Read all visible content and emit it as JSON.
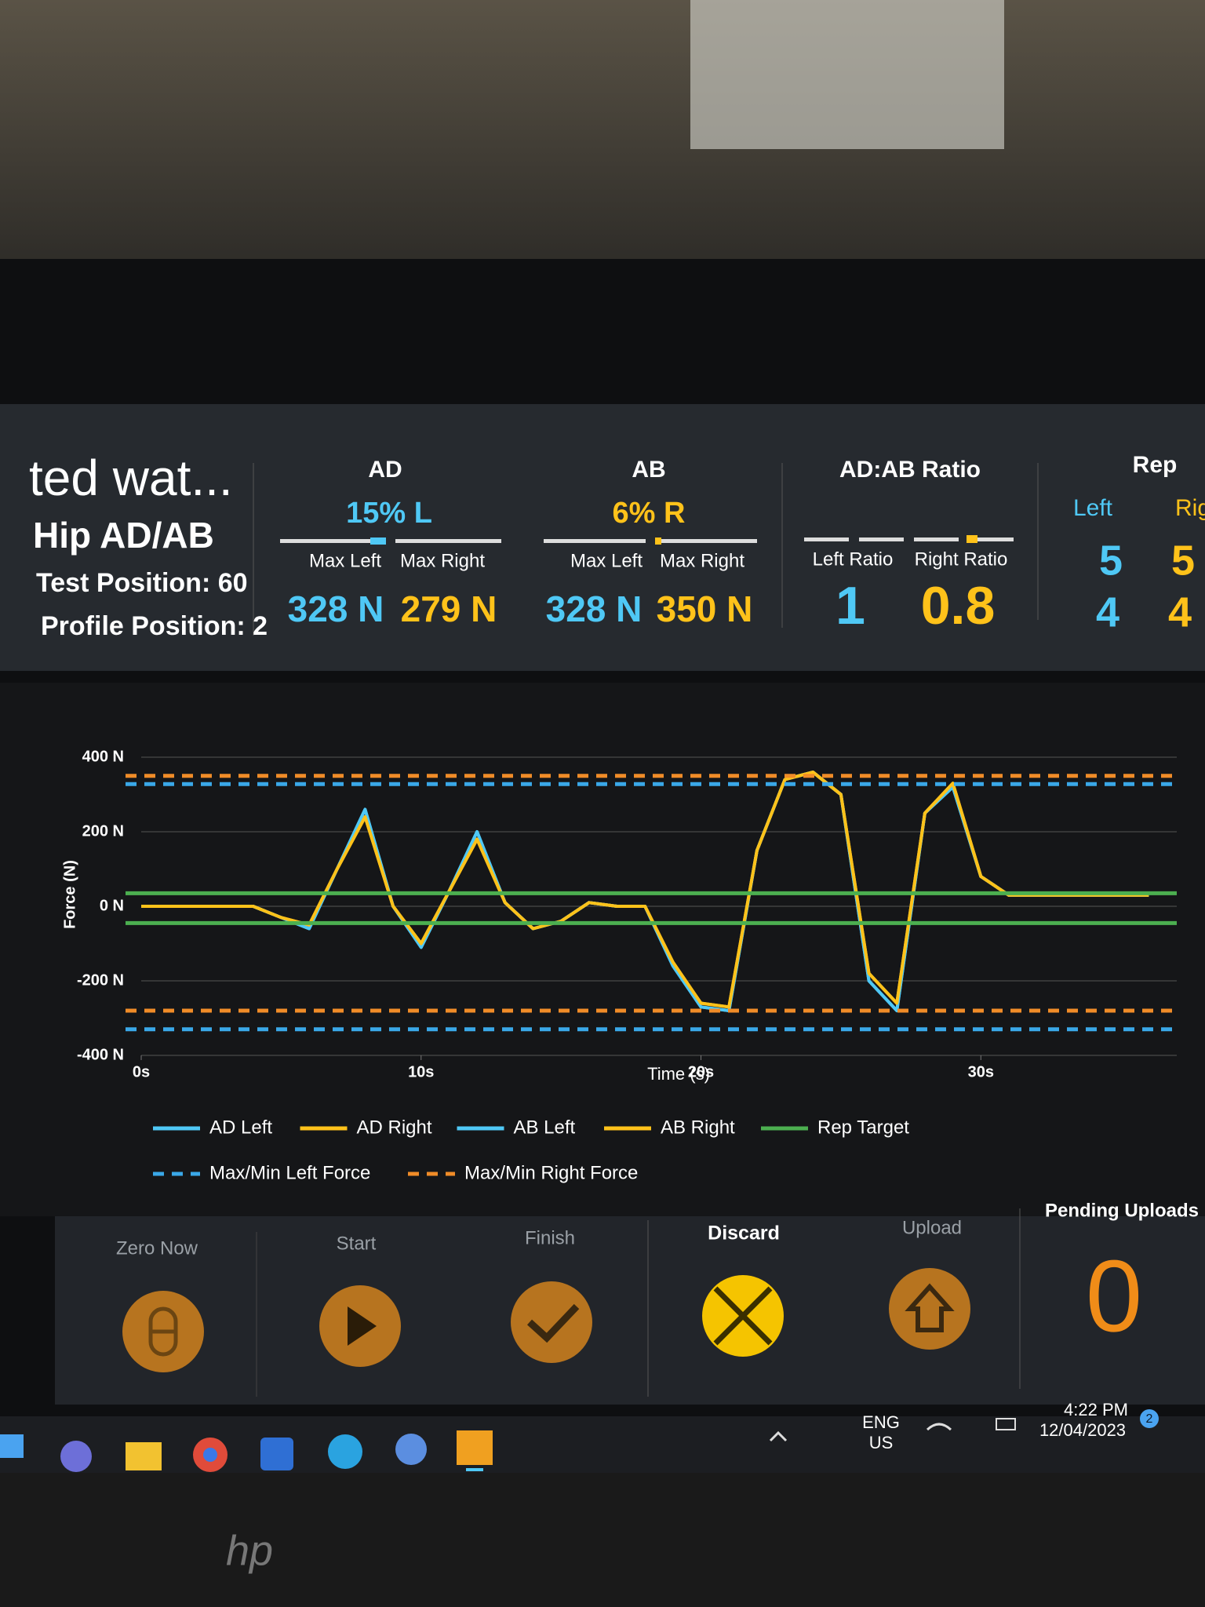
{
  "header": {
    "name": "ted wat...",
    "test": "Hip AD/AB",
    "test_position": "Test Position: 60",
    "profile_position": "Profile Position: 2"
  },
  "ad": {
    "title": "AD",
    "difference": "15% L",
    "max_left_label": "Max Left",
    "max_right_label": "Max Right",
    "max_left": "328 N",
    "max_right": "279 N"
  },
  "ab": {
    "title": "AB",
    "difference": "6% R",
    "max_left_label": "Max Left",
    "max_right_label": "Max Right",
    "max_left": "328 N",
    "max_right": "350 N"
  },
  "ratio": {
    "title": "AD:AB Ratio",
    "left_label": "Left Ratio",
    "right_label": "Right Ratio",
    "left": "1",
    "right": "0.8"
  },
  "rep": {
    "title": "Rep",
    "left_label": "Left",
    "right_label": "Rig",
    "left_values": [
      "5",
      "4"
    ],
    "right_values": [
      "5",
      "4"
    ]
  },
  "chart_data": {
    "type": "line",
    "x_label": "Time (s)",
    "y_label": "Force (N)",
    "xlim": [
      0,
      37
    ],
    "ylim": [
      -400,
      400
    ],
    "xticks": [
      {
        "value": 0,
        "label": "0s"
      },
      {
        "value": 10,
        "label": "10s"
      },
      {
        "value": 20,
        "label": "20s"
      },
      {
        "value": 30,
        "label": "30s"
      }
    ],
    "yticks": [
      {
        "value": 400,
        "label": "400 N"
      },
      {
        "value": 200,
        "label": "200 N"
      },
      {
        "value": 0,
        "label": "0 N"
      },
      {
        "value": -200,
        "label": "-200 N"
      },
      {
        "value": -400,
        "label": "-400 N"
      }
    ],
    "grid": true,
    "x": [
      0,
      1,
      2,
      3,
      4,
      5,
      6,
      7,
      8,
      9,
      10,
      11,
      12,
      13,
      14,
      15,
      16,
      17,
      18,
      19,
      20,
      21,
      22,
      23,
      24,
      25,
      26,
      27,
      28,
      29,
      30,
      31,
      32,
      33,
      34,
      35,
      36
    ],
    "series": [
      {
        "name": "AD Left",
        "color": "#4fc8f5",
        "values": [
          0,
          0,
          0,
          0,
          0,
          -30,
          -60,
          100,
          260,
          0,
          -110,
          40,
          200,
          10,
          -60,
          -40,
          10,
          0,
          0,
          -160,
          -270,
          -280,
          150,
          340,
          360,
          300,
          -200,
          -280,
          250,
          320,
          80,
          30,
          30,
          30,
          30,
          30,
          30
        ]
      },
      {
        "name": "AD Right",
        "color": "#ffc21a",
        "values": [
          0,
          0,
          0,
          0,
          0,
          -30,
          -50,
          100,
          240,
          0,
          -100,
          40,
          180,
          10,
          -60,
          -40,
          10,
          0,
          0,
          -150,
          -260,
          -270,
          150,
          340,
          360,
          300,
          -180,
          -260,
          250,
          330,
          80,
          30,
          30,
          30,
          30,
          30,
          30
        ]
      },
      {
        "name": "AB Left",
        "color": "#4fc8f5",
        "values": [
          0,
          0,
          0,
          0,
          0,
          -30,
          -60,
          100,
          260,
          0,
          -110,
          40,
          200,
          10,
          -60,
          -40,
          10,
          0,
          0,
          -160,
          -270,
          -280,
          150,
          340,
          360,
          300,
          -200,
          -280,
          250,
          320,
          80,
          30,
          30,
          30,
          30,
          30,
          30
        ]
      },
      {
        "name": "AB Right",
        "color": "#ffc21a",
        "values": [
          0,
          0,
          0,
          0,
          0,
          -30,
          -50,
          100,
          240,
          0,
          -100,
          40,
          180,
          10,
          -60,
          -40,
          10,
          0,
          0,
          -150,
          -260,
          -270,
          150,
          340,
          360,
          300,
          -180,
          -260,
          250,
          330,
          80,
          30,
          30,
          30,
          30,
          30,
          30
        ]
      },
      {
        "name": "Rep Target",
        "color": "#4caf50",
        "style": "solid",
        "lines": [
          -45,
          35
        ]
      },
      {
        "name": "Max/Min Left Force",
        "color": "#3aa8e8",
        "style": "dashed",
        "lines": [
          -330,
          328
        ]
      },
      {
        "name": "Max/Min Right Force",
        "color": "#f08c28",
        "style": "dashed",
        "lines": [
          -280,
          350
        ]
      }
    ]
  },
  "buttons": [
    {
      "label": "Zero Now"
    },
    {
      "label": "Start"
    },
    {
      "label": "Finish"
    },
    {
      "label": "Discard"
    },
    {
      "label": "Upload"
    }
  ],
  "pending": {
    "label": "Pending Uploads",
    "value": "0"
  },
  "taskbar": {
    "language": "ENG",
    "region": "US",
    "time": "4:22 PM",
    "date": "12/04/2023",
    "badge": "2"
  }
}
